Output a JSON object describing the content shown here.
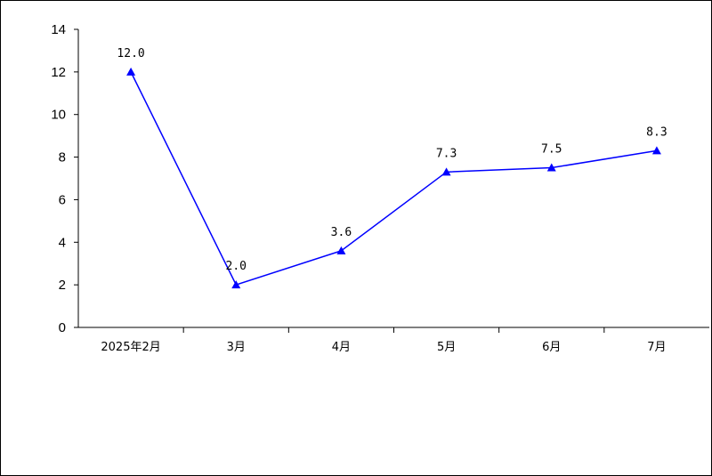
{
  "chart_data": {
    "type": "line",
    "categories": [
      "2025年2月",
      "3月",
      "4月",
      "5月",
      "6月",
      "7月"
    ],
    "series": [
      {
        "values": [
          12.0,
          2.0,
          3.6,
          7.3,
          7.5,
          8.3
        ]
      }
    ],
    "data_labels": [
      "12.0",
      "2.0",
      "3.6",
      "7.3",
      "7.5",
      "8.3"
    ],
    "ylim": [
      0,
      14
    ],
    "yticks": [
      "0",
      "2",
      "4",
      "6",
      "8",
      "10",
      "12",
      "14"
    ],
    "line_color": "#0000ff",
    "marker": "triangle",
    "grid": false,
    "legend": "none"
  }
}
